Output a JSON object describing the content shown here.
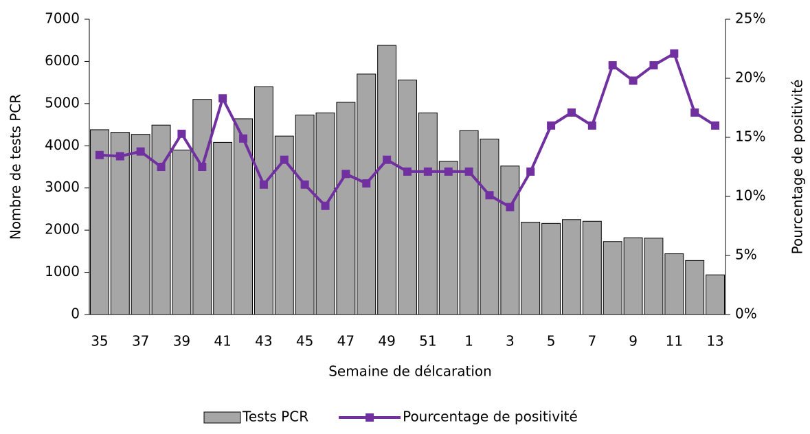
{
  "chart_data": {
    "type": "bar",
    "x_label": "Semaine de délcaration",
    "y_label": "Nombre de tests PCR",
    "y2_label": "Pourcentage de positivité",
    "categories": [
      "35",
      null,
      "37",
      null,
      "39",
      null,
      "41",
      null,
      "43",
      null,
      "45",
      null,
      "47",
      null,
      "49",
      null,
      "51",
      null,
      "1",
      null,
      "3",
      null,
      "5",
      null,
      "7",
      null,
      "9",
      null,
      "11",
      null,
      "13"
    ],
    "series": [
      {
        "name": "Tests PCR",
        "type": "bar",
        "color": "#a6a6a6",
        "values": [
          4380,
          4320,
          4270,
          4490,
          3900,
          5100,
          4080,
          4640,
          5400,
          4230,
          4730,
          4780,
          5030,
          5700,
          6380,
          5560,
          4780,
          3630,
          4360,
          4160,
          3520,
          2190,
          2160,
          2250,
          2210,
          1730,
          1820,
          1810,
          1440,
          1280,
          940
        ]
      },
      {
        "name": "Pourcentage de positivité",
        "type": "line",
        "axis": "y2",
        "color": "#7030a0",
        "values": [
          13.5,
          13.4,
          13.8,
          12.5,
          15.3,
          12.5,
          18.3,
          14.9,
          11.0,
          13.1,
          11.0,
          9.2,
          11.9,
          11.1,
          13.1,
          12.1,
          12.1,
          12.1,
          12.1,
          10.1,
          9.1,
          12.1,
          16.0,
          17.1,
          16.0,
          21.1,
          19.8,
          21.1,
          22.1,
          17.1,
          16.0
        ]
      }
    ],
    "ylim": [
      0,
      7000
    ],
    "yticks": [
      0,
      1000,
      2000,
      3000,
      4000,
      5000,
      6000,
      7000
    ],
    "y2lim": [
      0,
      25
    ],
    "y2ticks": [
      {
        "value": 0,
        "label": "0%"
      },
      {
        "value": 5,
        "label": "5%"
      },
      {
        "value": 10,
        "label": "10%"
      },
      {
        "value": 15,
        "label": "15%"
      },
      {
        "value": 20,
        "label": "20%"
      },
      {
        "value": 25,
        "label": "25%"
      }
    ],
    "legend": "bottom"
  }
}
